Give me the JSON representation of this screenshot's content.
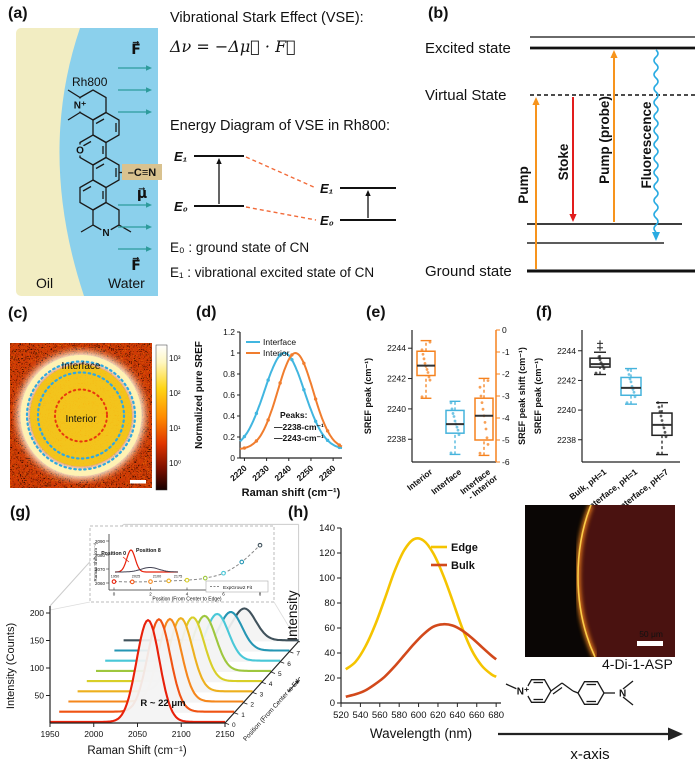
{
  "panels": {
    "a": {
      "label": "(a)",
      "rh800": "Rh800",
      "oil": "Oil",
      "water": "Water",
      "cn": "–C≡N",
      "mu": "μ⃗",
      "f_top": "F⃗",
      "f_bottom": "F⃗",
      "atoms": {
        "n_plus": "N⁺",
        "o": "O",
        "n": "N"
      },
      "vse_title": "Vibrational Stark Effect (VSE):",
      "vse_equation": "Δν = −Δμ⃗ · F⃗",
      "energy_title": "Energy Diagram of VSE in Rh800:",
      "e1": "E₁",
      "e0": "E₀",
      "e1r": "E₁",
      "e0r": "E₀",
      "e0_desc": "E₀ : ground state of CN",
      "e1_desc": "E₁ : vibrational excited state of CN",
      "colors": {
        "water": "#8bd0ec",
        "oil": "#f2edc2",
        "arrow_teal": "#2d9b9b",
        "dipole_orange": "#f7941d",
        "dash_red": "#f26b3a",
        "cn_box": "#d9c28f"
      }
    },
    "b": {
      "label": "(b)",
      "excited": "Excited state",
      "virtual": "Virtual State",
      "ground": "Ground state",
      "pump": "Pump",
      "stoke": "Stoke",
      "probe": "Pump (probe)",
      "fluorescence": "Fluorescence",
      "colors": {
        "pump": "#f7941d",
        "stoke": "#e21d1d",
        "fluorescence": "#29abe2"
      }
    },
    "c": {
      "label": "(c)",
      "interface": "Interface",
      "interior": "Interior",
      "colorbar_ticks": [
        "10³",
        "10²",
        "10¹",
        "10⁰"
      ]
    },
    "d": {
      "label": "(d)"
    },
    "e": {
      "label": "(e)"
    },
    "f": {
      "label": "(f)"
    },
    "g": {
      "label": "(g)"
    },
    "h": {
      "label": "(h)"
    },
    "micrograph": {
      "scalebar": "50 μm"
    },
    "molecule": {
      "name": "4-Di-1-ASP",
      "n_plus": "N⁺",
      "n": "N"
    },
    "xaxis": {
      "label": "x-axis"
    }
  },
  "chart_data": [
    {
      "id": "d",
      "type": "line",
      "xlabel": "Raman shift (cm⁻¹)",
      "ylabel": "Normalized pure SREF",
      "xlim": [
        2218,
        2264
      ],
      "ylim": [
        0,
        1.2
      ],
      "xticks": [
        2220,
        2230,
        2240,
        2250,
        2260
      ],
      "yticks": [
        0,
        0.2,
        0.4,
        0.6,
        0.8,
        1,
        1.2
      ],
      "legend_position": "top-left",
      "series": [
        {
          "name": "Interface",
          "color": "#41b6e0",
          "peak": 2238,
          "sigma": 9.0,
          "baseline": 0.08
        },
        {
          "name": "Interior",
          "color": "#f07d2e",
          "peak": 2243,
          "sigma": 8.0,
          "baseline": 0.08
        }
      ],
      "marker_x": [
        2220,
        2225.4,
        2230.7,
        2236.1,
        2241.4,
        2246.8,
        2252.1,
        2257.5,
        2262.8
      ],
      "annotation": {
        "heading": "Peaks:",
        "items": [
          {
            "label": "—2238-cm⁻¹",
            "color": "#41b6e0"
          },
          {
            "label": "—2243-cm⁻¹",
            "color": "#f07d2e"
          }
        ]
      }
    },
    {
      "id": "e",
      "type": "boxplot",
      "ylabel_left": "SREF peak (cm⁻¹)",
      "ylabel_right": "SREF peak shift (cm⁻¹)",
      "ylim_left": [
        2236.5,
        2245.2
      ],
      "yticks_left": [
        2238,
        2240,
        2242,
        2244
      ],
      "ylim_right": [
        -6,
        0
      ],
      "yticks_right": [
        0,
        -1,
        -2,
        -3,
        -4,
        -5,
        -6
      ],
      "right_axis_color": "#f5821f",
      "boxes": [
        {
          "label": "Interior",
          "axis": "left",
          "color": "#f5821f",
          "whisker_low": 2240.7,
          "q1": 2242.2,
          "median": 2242.85,
          "q3": 2243.8,
          "whisker_high": 2244.5,
          "points": [
            2240.8,
            2241.9,
            2242.1,
            2242.4,
            2242.6,
            2242.8,
            2243.0,
            2243.3,
            2243.6,
            2243.9,
            2244.4
          ]
        },
        {
          "label": "Interface",
          "axis": "left",
          "color": "#45b3dc",
          "whisker_low": 2237.0,
          "q1": 2238.4,
          "median": 2239.0,
          "q3": 2239.9,
          "whisker_high": 2240.5,
          "points": [
            2237.1,
            2238.3,
            2238.6,
            2238.8,
            2239.0,
            2239.2,
            2239.5,
            2239.7,
            2240.0,
            2240.4
          ]
        },
        {
          "label": "Interface - Interior",
          "axis": "right",
          "color": "#f5821f",
          "whisker_low": -5.7,
          "q1": -5.0,
          "median": -3.9,
          "q3": -3.1,
          "whisker_high": -2.2,
          "points": [
            -5.6,
            -5.2,
            -4.9,
            -4.5,
            -4.2,
            -3.9,
            -3.6,
            -3.3,
            -3.0,
            -2.6,
            -2.3
          ]
        }
      ]
    },
    {
      "id": "f",
      "type": "boxplot",
      "ylabel_left": "SREF peak (cm⁻¹)",
      "ylim_left": [
        2236.5,
        2245.4
      ],
      "yticks_left": [
        2238,
        2240,
        2242,
        2244
      ],
      "boxes": [
        {
          "label": "Bulk, pH=1",
          "axis": "left",
          "color": "#222222",
          "whisker_low": 2242.4,
          "q1": 2242.9,
          "median": 2243.1,
          "q3": 2243.5,
          "whisker_high": 2243.9,
          "outliers": [
            2244.2,
            2244.5
          ],
          "points": [
            2242.5,
            2242.8,
            2243.0,
            2243.1,
            2243.2,
            2243.4,
            2243.6
          ]
        },
        {
          "label": "Interface, pH=1",
          "axis": "left",
          "color": "#45b3dc",
          "whisker_low": 2240.4,
          "q1": 2241.0,
          "median": 2241.5,
          "q3": 2242.2,
          "whisker_high": 2242.8,
          "points": [
            2240.5,
            2240.9,
            2241.2,
            2241.4,
            2241.6,
            2241.9,
            2242.1,
            2242.4,
            2242.7
          ]
        },
        {
          "label": "Interface, pH=7",
          "axis": "left",
          "color": "#222222",
          "whisker_low": 2237.0,
          "q1": 2238.3,
          "median": 2239.0,
          "q3": 2239.8,
          "whisker_high": 2240.5,
          "points": [
            2237.1,
            2238.2,
            2238.5,
            2238.8,
            2239.0,
            2239.3,
            2239.6,
            2239.9,
            2240.2,
            2240.5
          ]
        }
      ]
    },
    {
      "id": "g",
      "type": "waterfall-3d",
      "xlabel": "Raman Shift (cm⁻¹)",
      "ylabel": "Intensity (Counts)",
      "zlabel": "Position (From Center to Edge)",
      "xlim": [
        1950,
        2150
      ],
      "xticks": [
        1950,
        2000,
        2050,
        2100,
        2150
      ],
      "yticks": [
        50,
        100,
        150,
        200
      ],
      "annotation": "R ~ 22 μm",
      "series": [
        {
          "position": 0,
          "color": "#e8200a",
          "peak_center": 2062,
          "amplitude": 185
        },
        {
          "position": 1,
          "color": "#f05313",
          "peak_center": 2064,
          "amplitude": 168
        },
        {
          "position": 2,
          "color": "#f5871c",
          "peak_center": 2066,
          "amplitude": 150
        },
        {
          "position": 3,
          "color": "#edb01e",
          "peak_center": 2068,
          "amplitude": 133
        },
        {
          "position": 4,
          "color": "#d8cf28",
          "peak_center": 2071,
          "amplitude": 116
        },
        {
          "position": 5,
          "color": "#9ec73e",
          "peak_center": 2074,
          "amplitude": 100
        },
        {
          "position": 6,
          "color": "#49c8d8",
          "peak_center": 2078,
          "amplitude": 85
        },
        {
          "position": 7,
          "color": "#2596b4",
          "peak_center": 2083,
          "amplitude": 70
        },
        {
          "position": 8,
          "color": "#40525c",
          "peak_center": 2088,
          "amplitude": 58
        }
      ],
      "inset": {
        "xlabel": "Position (From Center to Edge)",
        "ylabel": "Raman Shift (cm⁻¹)",
        "yticks": [
          2060,
          2070,
          2080,
          2090
        ],
        "xticks": [
          0,
          2,
          4,
          6,
          8
        ],
        "points": [
          2061,
          2060.8,
          2061,
          2061.5,
          2062,
          2063.5,
          2067,
          2075,
          2087
        ],
        "fit_label": "ExpGrow2 Fit",
        "pos0_label": "Position 0",
        "pos8_label": "Position 8",
        "mini_xticks": [
          1950,
          2025,
          2100,
          2175
        ]
      }
    },
    {
      "id": "h",
      "type": "line",
      "xlabel": "Wavelength (nm)",
      "ylabel": "Intensity",
      "xlim": [
        520,
        685
      ],
      "ylim": [
        0,
        140
      ],
      "xticks": [
        520,
        540,
        560,
        580,
        600,
        620,
        640,
        660,
        680
      ],
      "yticks": [
        0,
        20,
        40,
        60,
        80,
        100,
        120,
        140
      ],
      "x": [
        525,
        535,
        545,
        555,
        565,
        575,
        585,
        595,
        605,
        615,
        625,
        635,
        645,
        655,
        665,
        675,
        680
      ],
      "series": [
        {
          "name": "Edge",
          "color": "#f5c400",
          "values": [
            27,
            33,
            45,
            62,
            83,
            105,
            122,
            131,
            130,
            120,
            103,
            82,
            60,
            42,
            30,
            23,
            21
          ]
        },
        {
          "name": "Bulk",
          "color": "#d2491b",
          "values": [
            5,
            7,
            10,
            15,
            21,
            29,
            38,
            47,
            55,
            61,
            63,
            62,
            58,
            52,
            45,
            38,
            35
          ]
        }
      ],
      "legend_position": "top-right"
    }
  ]
}
